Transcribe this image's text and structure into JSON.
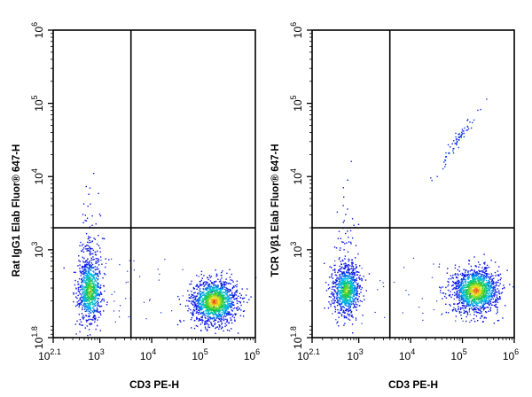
{
  "chart_data": [
    {
      "type": "scatter",
      "panel": "left",
      "xlabel": "CD3 PE-H",
      "ylabel": "Rat IgG1 Elab Fluor® 647-H",
      "x_scale": "log10",
      "y_scale": "log10",
      "xlim_log10": [
        2.1,
        6
      ],
      "ylim_log10": [
        1.8,
        6
      ],
      "x_ticks": [
        {
          "value": 2.1,
          "base": "10",
          "exp": "2.1"
        },
        {
          "value": 3,
          "base": "10",
          "exp": "3"
        },
        {
          "value": 4,
          "base": "10",
          "exp": "4"
        },
        {
          "value": 5,
          "base": "10",
          "exp": "5"
        },
        {
          "value": 6,
          "base": "10",
          "exp": "6"
        }
      ],
      "y_ticks": [
        {
          "value": 1.8,
          "base": "10",
          "exp": "1.8"
        },
        {
          "value": 3,
          "base": "10",
          "exp": "3"
        },
        {
          "value": 4,
          "base": "10",
          "exp": "4"
        },
        {
          "value": 5,
          "base": "10",
          "exp": "5"
        },
        {
          "value": 6,
          "base": "10",
          "exp": "6"
        }
      ],
      "quadrant_gate_log10": {
        "x": 3.6,
        "y": 3.3
      },
      "populations": [
        {
          "center_log10": [
            2.8,
            2.45
          ],
          "spread_log10": [
            0.12,
            0.22
          ],
          "count": 900,
          "tail_up": true
        },
        {
          "center_log10": [
            5.2,
            2.3
          ],
          "spread_log10": [
            0.22,
            0.15
          ],
          "count": 1400,
          "tail_up": false
        }
      ],
      "grid": false,
      "legend": "none",
      "color_scale": "density (blue-cyan-green-yellow-red)"
    },
    {
      "type": "scatter",
      "panel": "right",
      "xlabel": "CD3 PE-H",
      "ylabel": "TCR Vβ1 Elab Fluor® 647-H",
      "x_scale": "log10",
      "y_scale": "log10",
      "xlim_log10": [
        2.1,
        6
      ],
      "ylim_log10": [
        1.8,
        6
      ],
      "x_ticks": [
        {
          "value": 2.1,
          "base": "10",
          "exp": "2.1"
        },
        {
          "value": 3,
          "base": "10",
          "exp": "3"
        },
        {
          "value": 4,
          "base": "10",
          "exp": "4"
        },
        {
          "value": 5,
          "base": "10",
          "exp": "5"
        },
        {
          "value": 6,
          "base": "10",
          "exp": "6"
        }
      ],
      "y_ticks": [
        {
          "value": 1.8,
          "base": "10",
          "exp": "1.8"
        },
        {
          "value": 3,
          "base": "10",
          "exp": "3"
        },
        {
          "value": 4,
          "base": "10",
          "exp": "4"
        },
        {
          "value": 5,
          "base": "10",
          "exp": "5"
        },
        {
          "value": 6,
          "base": "10",
          "exp": "6"
        }
      ],
      "quadrant_gate_log10": {
        "x": 3.6,
        "y": 3.3
      },
      "populations": [
        {
          "center_log10": [
            2.75,
            2.45
          ],
          "spread_log10": [
            0.13,
            0.16
          ],
          "count": 900,
          "tail_up": true
        },
        {
          "center_log10": [
            5.25,
            2.45
          ],
          "spread_log10": [
            0.22,
            0.15
          ],
          "count": 1400,
          "tail_up": false
        },
        {
          "center_log10": [
            4.9,
            4.5
          ],
          "spread_log10": [
            0.18,
            0.12
          ],
          "count": 70,
          "diagonal": true
        }
      ],
      "grid": false,
      "legend": "none",
      "color_scale": "density (blue-cyan-green-yellow-red)"
    }
  ]
}
